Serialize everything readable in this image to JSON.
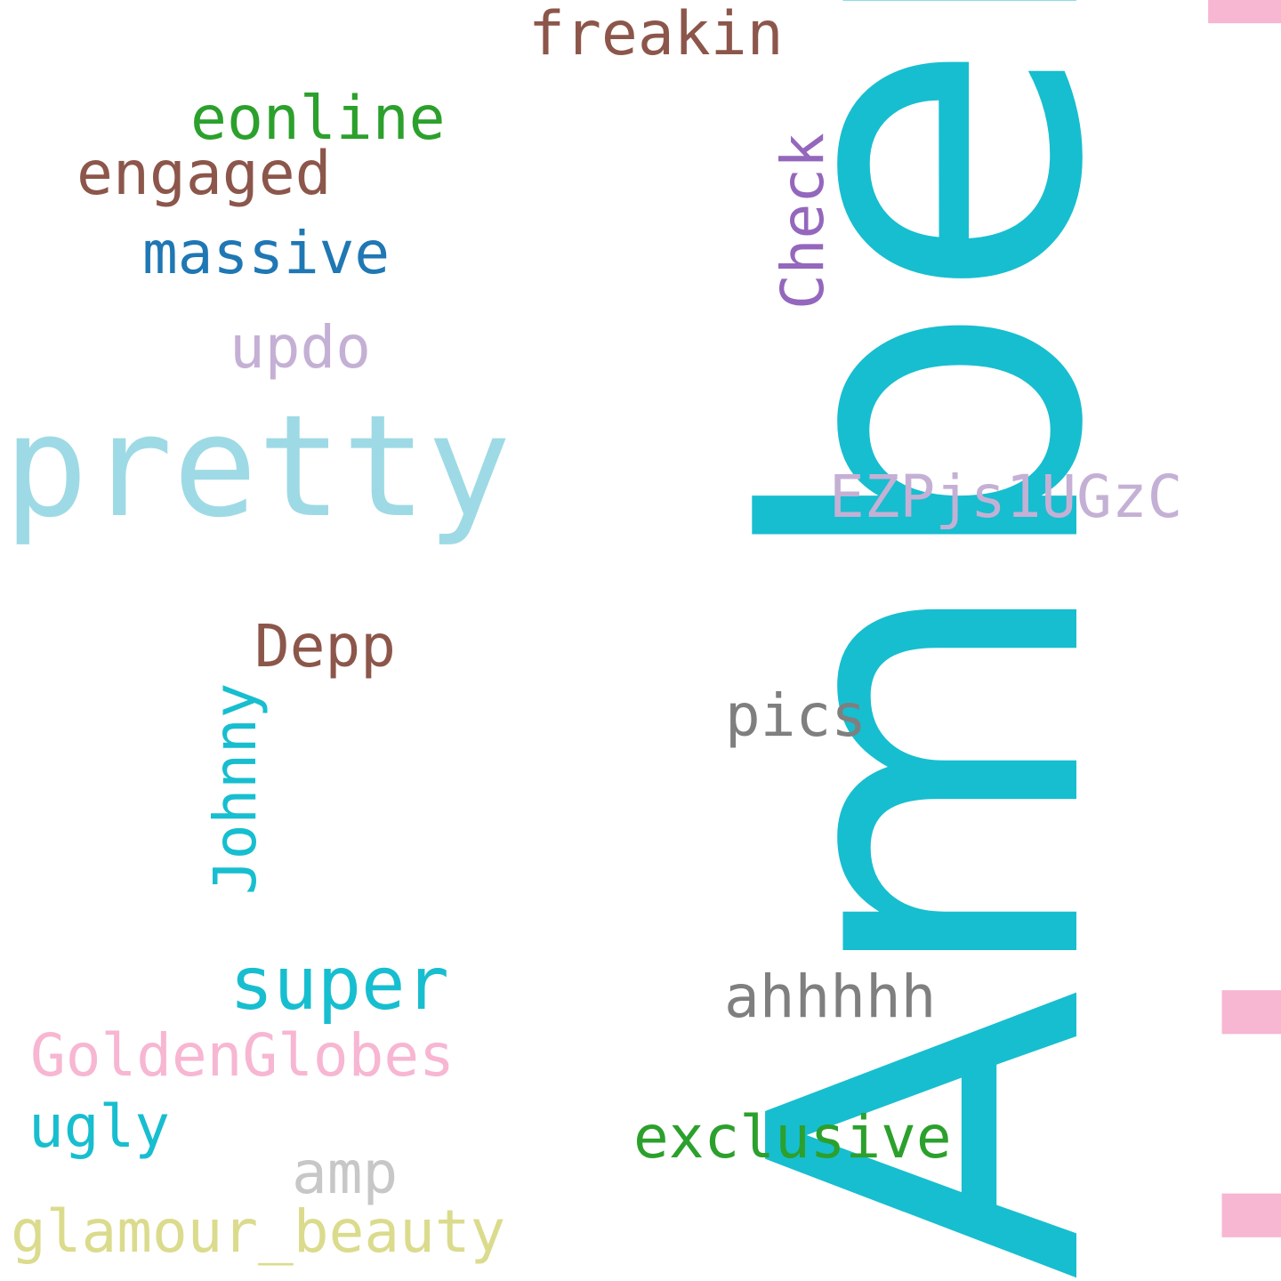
{
  "words": {
    "heard": {
      "text": "Heard",
      "color": "#f7b6d2",
      "rotated": true
    },
    "amber": {
      "text": "Amber",
      "color": "#17becf",
      "rotated": true
    },
    "pretty": {
      "text": "pretty",
      "color": "#9edae5",
      "rotated": false
    },
    "freakin": {
      "text": "freakin",
      "color": "#8c564b",
      "rotated": false
    },
    "eonline": {
      "text": "eonline",
      "color": "#2ca02c",
      "rotated": false
    },
    "engaged": {
      "text": "engaged",
      "color": "#8c564b",
      "rotated": false
    },
    "massive": {
      "text": "massive",
      "color": "#1f77b4",
      "rotated": false
    },
    "check": {
      "text": "Check",
      "color": "#9467bd",
      "rotated": true
    },
    "updo": {
      "text": "updo",
      "color": "#c5b0d5",
      "rotated": false
    },
    "ezp": {
      "text": "EZPjs1UGzC",
      "color": "#c5b0d5",
      "rotated": false
    },
    "depp": {
      "text": "Depp",
      "color": "#8c564b",
      "rotated": false
    },
    "johnny": {
      "text": "Johnny",
      "color": "#17becf",
      "rotated": true
    },
    "pics": {
      "text": "pics",
      "color": "#7f7f7f",
      "rotated": false
    },
    "super": {
      "text": "super",
      "color": "#17becf",
      "rotated": false
    },
    "ahhhhh": {
      "text": "ahhhhh",
      "color": "#7f7f7f",
      "rotated": false
    },
    "goldenglobes": {
      "text": "GoldenGlobes",
      "color": "#f7b6d2",
      "rotated": false
    },
    "ugly": {
      "text": "ugly",
      "color": "#17becf",
      "rotated": false
    },
    "exclusive": {
      "text": "exclusive",
      "color": "#2ca02c",
      "rotated": false
    },
    "amp": {
      "text": "amp",
      "color": "#c7c7c7",
      "rotated": false
    },
    "glamour": {
      "text": "glamour_beauty",
      "color": "#dbdb8d",
      "rotated": false
    }
  }
}
